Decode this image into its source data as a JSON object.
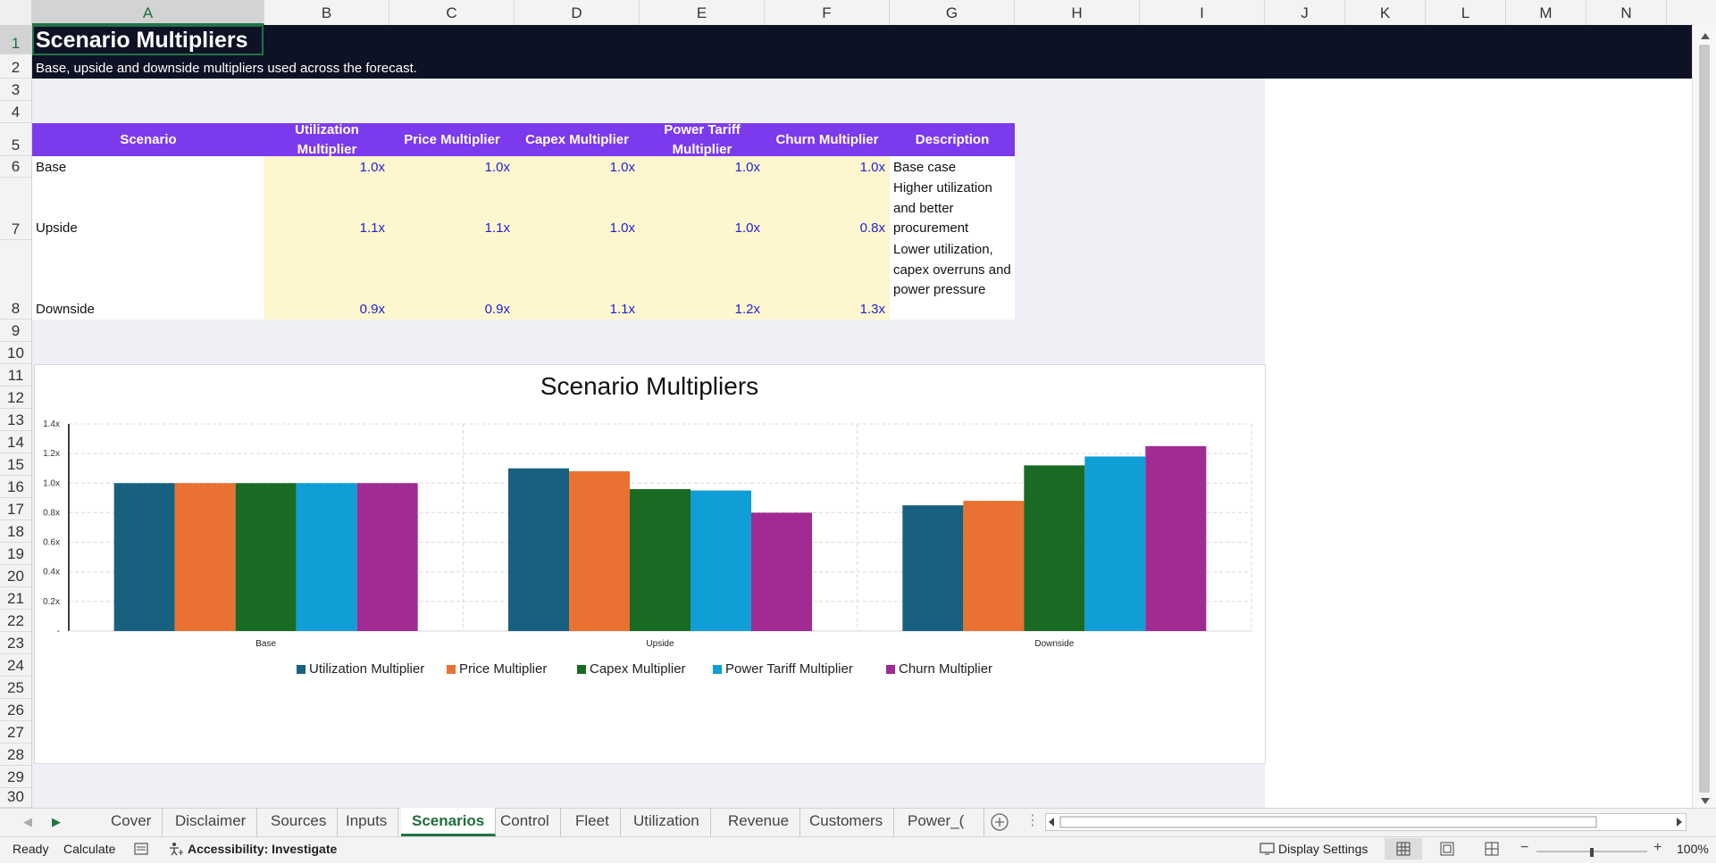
{
  "columns": [
    "A",
    "B",
    "C",
    "D",
    "E",
    "F",
    "G",
    "H",
    "I",
    "J",
    "K",
    "L",
    "M",
    "N"
  ],
  "rows": [
    "1",
    "2",
    "3",
    "4",
    "5",
    "6",
    "7",
    "8",
    "9",
    "10",
    "11",
    "12",
    "13",
    "14",
    "15",
    "16",
    "17",
    "18",
    "19",
    "20",
    "21",
    "22",
    "23",
    "24",
    "25",
    "26",
    "27",
    "28",
    "29",
    "30"
  ],
  "sheet": {
    "title": "Scenario Multipliers",
    "subtitle": "Base, upside and downside multipliers used across the forecast."
  },
  "table": {
    "headers": [
      "Scenario",
      "Utilization Multiplier",
      "Price Multiplier",
      "Capex Multiplier",
      "Power Tariff Multiplier",
      "Churn Multiplier",
      "Description"
    ],
    "rows": [
      {
        "name": "Base",
        "values": [
          "1.0x",
          "1.0x",
          "1.0x",
          "1.0x",
          "1.0x"
        ],
        "desc": "Base case"
      },
      {
        "name": "Upside",
        "values": [
          "1.1x",
          "1.1x",
          "1.0x",
          "1.0x",
          "0.8x"
        ],
        "desc": "Higher utilization and better procurement"
      },
      {
        "name": "Downside",
        "values": [
          "0.9x",
          "0.9x",
          "1.1x",
          "1.2x",
          "1.3x"
        ],
        "desc": "Lower utilization, capex overruns and power pressure"
      }
    ]
  },
  "chart_data": {
    "type": "bar",
    "title": "Scenario Multipliers",
    "categories": [
      "Base",
      "Upside",
      "Downside"
    ],
    "series": [
      {
        "name": "Utilization Multiplier",
        "values": [
          1.0,
          1.1,
          0.85
        ],
        "color": "#17607f"
      },
      {
        "name": "Price Multiplier",
        "values": [
          1.0,
          1.08,
          0.88
        ],
        "color": "#e97132"
      },
      {
        "name": "Capex Multiplier",
        "values": [
          1.0,
          0.96,
          1.12
        ],
        "color": "#196b24"
      },
      {
        "name": "Power Tariff Multiplier",
        "values": [
          1.0,
          0.95,
          1.18
        ],
        "color": "#0f9ed5"
      },
      {
        "name": "Churn Multiplier",
        "values": [
          1.0,
          0.8,
          1.25
        ],
        "color": "#a02b93"
      }
    ],
    "yticks": [
      "-",
      "0.2x",
      "0.4x",
      "0.6x",
      "0.8x",
      "1.0x",
      "1.2x",
      "1.4x"
    ],
    "ylim": [
      0,
      1.4
    ],
    "grid": true,
    "legend_position": "bottom"
  },
  "tabs": [
    "Cover",
    "Disclaimer",
    "Sources",
    "Inputs",
    "Scenarios",
    "Control",
    "Fleet",
    "Utilization",
    "Revenue",
    "Customers",
    "Power_("
  ],
  "active_tab": "Scenarios",
  "status": {
    "ready": "Ready",
    "calculate": "Calculate",
    "accessibility": "Accessibility: Investigate",
    "display_settings": "Display Settings",
    "zoom": "100%"
  }
}
